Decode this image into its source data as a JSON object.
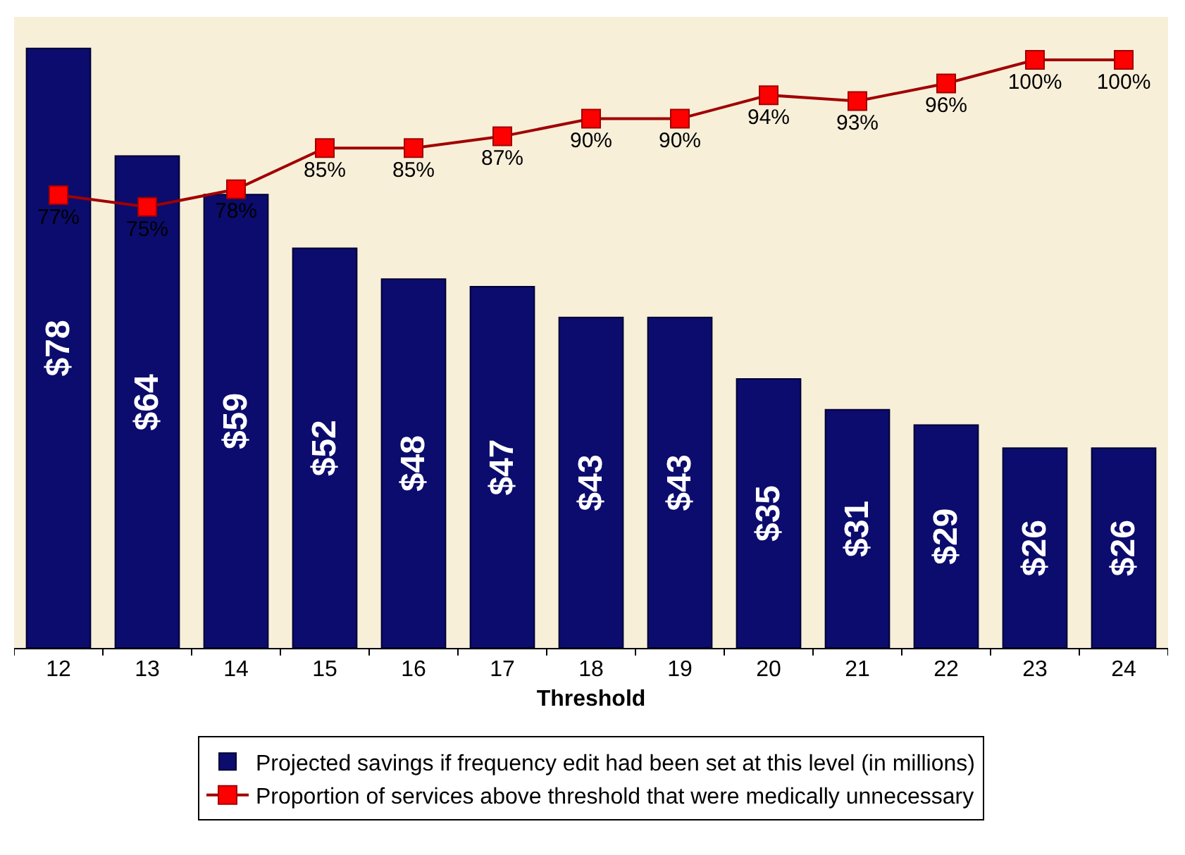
{
  "chart_data": {
    "type": "bar",
    "xlabel": "Threshold",
    "categories": [
      "12",
      "13",
      "14",
      "15",
      "16",
      "17",
      "18",
      "19",
      "20",
      "21",
      "22",
      "23",
      "24"
    ],
    "series": [
      {
        "name": "Projected savings if frequency edit had been set at this level (in millions)",
        "color": "#0c0c6e",
        "values": [
          78,
          64,
          59,
          52,
          48,
          47,
          43,
          43,
          35,
          31,
          29,
          26,
          26
        ],
        "value_labels": [
          "$78",
          "$64",
          "$59",
          "$52",
          "$48",
          "$47",
          "$43",
          "$43",
          "$35",
          "$31",
          "$29",
          "$26",
          "$26"
        ]
      },
      {
        "name": "Proportion of services above threshold that were medically unnecessary",
        "type": "line",
        "axis": "y2",
        "color": "#a00000",
        "values": [
          77,
          75,
          78,
          85,
          85,
          87,
          90,
          90,
          94,
          93,
          96,
          100,
          100
        ],
        "value_labels": [
          "77%",
          "75%",
          "78%",
          "85%",
          "85%",
          "87%",
          "90%",
          "90%",
          "94%",
          "93%",
          "96%",
          "100%",
          "100%"
        ]
      }
    ],
    "legend": "bottom",
    "marker": "square",
    "line_style": "solid",
    "grid": false
  }
}
